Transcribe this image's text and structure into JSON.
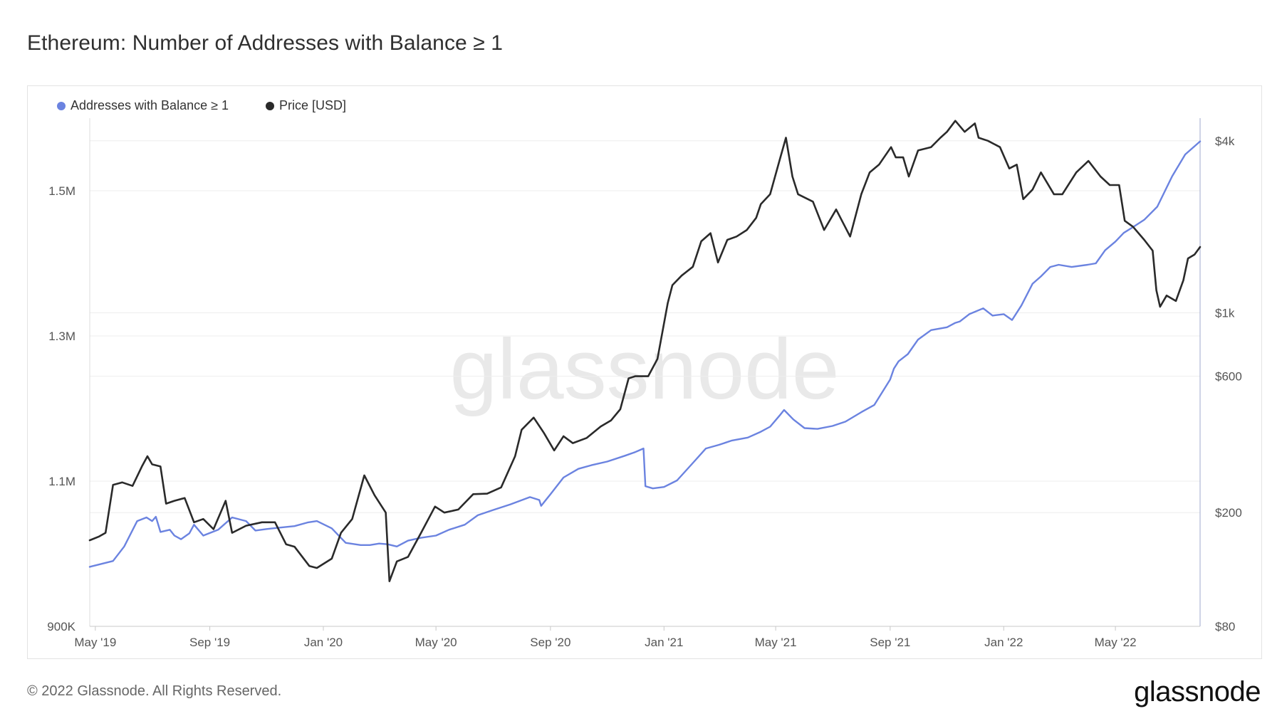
{
  "title": "Ethereum: Number of Addresses with Balance ≥ 1",
  "watermark": "glassnode",
  "footer": {
    "copyright": "© 2022 Glassnode. All Rights Reserved.",
    "logo": "glassnode"
  },
  "colors": {
    "addresses": "#6b83e0",
    "price": "#2a2a2a"
  },
  "chart_data": {
    "type": "line",
    "legend": [
      {
        "name": "Addresses with Balance ≥ 1",
        "color": "#6b83e0"
      },
      {
        "name": "Price [USD]",
        "color": "#2a2a2a"
      }
    ],
    "legend_position": "top-left",
    "grid": true,
    "x_range": [
      "2019-04-25",
      "2022-07-31"
    ],
    "x_ticks": [
      "May '19",
      "Sep '19",
      "Jan '20",
      "May '20",
      "Sep '20",
      "Jan '21",
      "May '21",
      "Sep '21",
      "Jan '22",
      "May '22"
    ],
    "x_tick_dates": [
      "2019-05-01",
      "2019-09-01",
      "2020-01-01",
      "2020-05-01",
      "2020-09-01",
      "2021-01-01",
      "2021-05-01",
      "2021-09-01",
      "2022-01-01",
      "2022-05-01"
    ],
    "y_left": {
      "scale": "linear",
      "range": [
        900000,
        1600000
      ],
      "ticks": [
        900000,
        1100000,
        1300000,
        1500000
      ],
      "tick_labels": [
        "900K",
        "1.1M",
        "1.3M",
        "1.5M"
      ]
    },
    "y_right": {
      "scale": "log",
      "range": [
        80,
        4800
      ],
      "ticks": [
        80,
        200,
        600,
        1000,
        4000
      ],
      "tick_labels": [
        "$80",
        "$200",
        "$600",
        "$1k",
        "$4k"
      ]
    },
    "series": [
      {
        "name": "Addresses with Balance ≥ 1",
        "axis": "left",
        "x": [
          "2019-04-25",
          "2019-05-20",
          "2019-06-01",
          "2019-06-15",
          "2019-06-25",
          "2019-07-01",
          "2019-07-05",
          "2019-07-10",
          "2019-07-20",
          "2019-07-25",
          "2019-08-01",
          "2019-08-10",
          "2019-08-15",
          "2019-08-25",
          "2019-09-10",
          "2019-09-25",
          "2019-10-10",
          "2019-10-20",
          "2019-11-01",
          "2019-11-15",
          "2019-12-01",
          "2019-12-15",
          "2019-12-25",
          "2020-01-10",
          "2020-01-25",
          "2020-02-10",
          "2020-02-20",
          "2020-03-01",
          "2020-03-10",
          "2020-03-20",
          "2020-04-01",
          "2020-04-15",
          "2020-05-01",
          "2020-05-15",
          "2020-06-01",
          "2020-06-15",
          "2020-07-01",
          "2020-07-20",
          "2020-08-10",
          "2020-08-20",
          "2020-08-22",
          "2020-09-01",
          "2020-09-15",
          "2020-10-01",
          "2020-10-15",
          "2020-11-01",
          "2020-11-20",
          "2020-12-01",
          "2020-12-10",
          "2020-12-12",
          "2020-12-20",
          "2021-01-01",
          "2021-01-15",
          "2021-02-01",
          "2021-02-15",
          "2021-03-01",
          "2021-03-15",
          "2021-04-01",
          "2021-04-15",
          "2021-04-25",
          "2021-05-05",
          "2021-05-10",
          "2021-05-20",
          "2021-06-01",
          "2021-06-15",
          "2021-07-01",
          "2021-07-15",
          "2021-08-01",
          "2021-08-15",
          "2021-09-01",
          "2021-09-05",
          "2021-09-10",
          "2021-09-20",
          "2021-10-01",
          "2021-10-15",
          "2021-11-01",
          "2021-11-10",
          "2021-11-15",
          "2021-11-25",
          "2021-12-10",
          "2021-12-20",
          "2022-01-01",
          "2022-01-10",
          "2022-01-20",
          "2022-02-01",
          "2022-02-10",
          "2022-02-20",
          "2022-03-01",
          "2022-03-15",
          "2022-04-01",
          "2022-04-10",
          "2022-04-20",
          "2022-05-01",
          "2022-05-10",
          "2022-05-20",
          "2022-06-01",
          "2022-06-15",
          "2022-07-01",
          "2022-07-15",
          "2022-07-31"
        ],
        "y": [
          982000,
          990000,
          1010000,
          1045000,
          1050000,
          1045000,
          1051000,
          1030000,
          1033000,
          1025000,
          1020000,
          1028000,
          1040000,
          1025000,
          1033000,
          1050000,
          1045000,
          1032000,
          1034000,
          1036000,
          1038000,
          1043000,
          1045000,
          1035000,
          1015000,
          1012000,
          1012000,
          1014000,
          1013000,
          1010000,
          1018000,
          1022000,
          1025000,
          1033000,
          1040000,
          1053000,
          1060000,
          1068000,
          1078000,
          1074000,
          1066000,
          1082000,
          1105000,
          1117000,
          1122000,
          1127000,
          1135000,
          1140000,
          1145000,
          1093000,
          1090000,
          1092000,
          1101000,
          1125000,
          1145000,
          1150000,
          1156000,
          1160000,
          1168000,
          1175000,
          1190000,
          1198000,
          1185000,
          1173000,
          1172000,
          1176000,
          1182000,
          1195000,
          1205000,
          1240000,
          1255000,
          1265000,
          1275000,
          1295000,
          1308000,
          1312000,
          1318000,
          1320000,
          1330000,
          1338000,
          1328000,
          1330000,
          1322000,
          1342000,
          1372000,
          1382000,
          1395000,
          1398000,
          1395000,
          1398000,
          1400000,
          1418000,
          1430000,
          1442000,
          1450000,
          1460000,
          1478000,
          1520000,
          1550000,
          1568000
        ]
      },
      {
        "name": "Price [USD]",
        "axis": "right",
        "x": [
          "2019-04-25",
          "2019-05-05",
          "2019-05-12",
          "2019-05-20",
          "2019-05-30",
          "2019-06-10",
          "2019-06-20",
          "2019-06-26",
          "2019-07-01",
          "2019-07-10",
          "2019-07-16",
          "2019-07-25",
          "2019-08-05",
          "2019-08-15",
          "2019-08-25",
          "2019-09-05",
          "2019-09-18",
          "2019-09-25",
          "2019-10-10",
          "2019-10-27",
          "2019-11-10",
          "2019-11-22",
          "2019-12-01",
          "2019-12-17",
          "2019-12-25",
          "2020-01-10",
          "2020-01-20",
          "2020-02-01",
          "2020-02-14",
          "2020-02-25",
          "2020-03-08",
          "2020-03-12",
          "2020-03-20",
          "2020-04-01",
          "2020-04-15",
          "2020-04-30",
          "2020-05-10",
          "2020-05-25",
          "2020-06-10",
          "2020-06-25",
          "2020-07-10",
          "2020-07-25",
          "2020-08-01",
          "2020-08-14",
          "2020-08-25",
          "2020-09-05",
          "2020-09-15",
          "2020-09-25",
          "2020-10-10",
          "2020-10-25",
          "2020-11-05",
          "2020-11-15",
          "2020-11-24",
          "2020-12-01",
          "2020-12-15",
          "2020-12-25",
          "2021-01-05",
          "2021-01-10",
          "2021-01-20",
          "2021-02-01",
          "2021-02-10",
          "2021-02-20",
          "2021-02-28",
          "2021-03-10",
          "2021-03-20",
          "2021-03-31",
          "2021-04-10",
          "2021-04-15",
          "2021-04-25",
          "2021-05-05",
          "2021-05-12",
          "2021-05-19",
          "2021-05-25",
          "2021-06-10",
          "2021-06-22",
          "2021-07-05",
          "2021-07-20",
          "2021-08-01",
          "2021-08-10",
          "2021-08-20",
          "2021-09-02",
          "2021-09-07",
          "2021-09-15",
          "2021-09-21",
          "2021-10-01",
          "2021-10-15",
          "2021-10-25",
          "2021-11-01",
          "2021-11-10",
          "2021-11-20",
          "2021-12-01",
          "2021-12-05",
          "2021-12-15",
          "2021-12-28",
          "2022-01-07",
          "2022-01-15",
          "2022-01-22",
          "2022-02-01",
          "2022-02-10",
          "2022-02-24",
          "2022-03-05",
          "2022-03-20",
          "2022-04-02",
          "2022-04-15",
          "2022-04-25",
          "2022-05-05",
          "2022-05-11",
          "2022-05-20",
          "2022-06-01",
          "2022-06-10",
          "2022-06-14",
          "2022-06-18",
          "2022-06-25",
          "2022-07-05",
          "2022-07-13",
          "2022-07-18",
          "2022-07-25",
          "2022-07-31"
        ],
        "y": [
          160,
          165,
          170,
          250,
          255,
          248,
          290,
          315,
          295,
          290,
          215,
          220,
          225,
          185,
          190,
          175,
          220,
          170,
          180,
          185,
          185,
          155,
          152,
          130,
          128,
          138,
          170,
          190,
          270,
          230,
          200,
          115,
          135,
          140,
          170,
          210,
          200,
          205,
          232,
          233,
          245,
          315,
          390,
          430,
          380,
          330,
          370,
          350,
          365,
          400,
          420,
          460,
          590,
          600,
          600,
          690,
          1080,
          1250,
          1350,
          1450,
          1780,
          1900,
          1500,
          1800,
          1850,
          1950,
          2150,
          2400,
          2600,
          3400,
          4100,
          3000,
          2600,
          2450,
          1950,
          2300,
          1850,
          2600,
          3100,
          3300,
          3800,
          3500,
          3500,
          3000,
          3700,
          3800,
          4100,
          4300,
          4700,
          4300,
          4600,
          4100,
          4000,
          3800,
          3200,
          3300,
          2500,
          2700,
          3100,
          2600,
          2600,
          3100,
          3400,
          3000,
          2800,
          2800,
          2100,
          2000,
          1800,
          1650,
          1200,
          1050,
          1150,
          1100,
          1300,
          1550,
          1600,
          1700
        ]
      }
    ]
  }
}
